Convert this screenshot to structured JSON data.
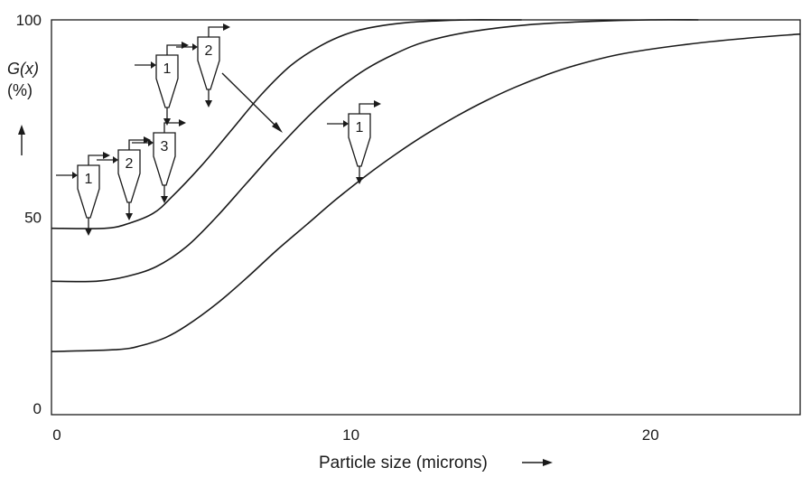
{
  "chart_data": {
    "type": "line",
    "xlabel": "Particle size (microns)",
    "ylabel_main": "G(x)",
    "ylabel_unit": "(%)",
    "xlim": [
      0,
      25
    ],
    "ylim": [
      0,
      100
    ],
    "x_ticks": [
      {
        "value": 0,
        "label": "0"
      },
      {
        "value": 10,
        "label": "10"
      },
      {
        "value": 20,
        "label": "20"
      }
    ],
    "y_ticks": [
      {
        "value": 0,
        "label": "0"
      },
      {
        "value": 50,
        "label": "50"
      },
      {
        "value": 100,
        "label": "100"
      }
    ],
    "grid": false,
    "series": [
      {
        "x": [
          0,
          1.8,
          2.6,
          3.4,
          4.0,
          5.0,
          6.0,
          7.0,
          8.0,
          9.0,
          10.0,
          11.0,
          12.0,
          13.0,
          14.0,
          15.0,
          15.7
        ],
        "values": [
          47.2,
          47.2,
          48.5,
          51.0,
          55.0,
          63.0,
          72.0,
          81.0,
          88.5,
          93.5,
          96.8,
          98.5,
          99.4,
          99.8,
          100.0,
          100.0,
          100.0
        ]
      },
      {
        "x": [
          0,
          1.5,
          2.5,
          3.5,
          4.5,
          5.5,
          6.5,
          7.5,
          8.5,
          9.5,
          10.5,
          11.5,
          12.5,
          14.0,
          16.0,
          18.0,
          20.0,
          21.6
        ],
        "values": [
          33.8,
          33.8,
          35.0,
          37.5,
          42.5,
          50.0,
          58.5,
          67.0,
          75.0,
          82.0,
          87.5,
          91.5,
          94.5,
          97.0,
          98.8,
          99.6,
          100.0,
          100.0
        ]
      },
      {
        "x": [
          0,
          2.2,
          3.0,
          3.8,
          4.5,
          5.5,
          6.5,
          7.5,
          8.5,
          9.5,
          10.5,
          11.5,
          12.5,
          13.5,
          14.5,
          15.5,
          16.5,
          17.5,
          19.0,
          21.0,
          23.0,
          25.0
        ],
        "values": [
          16.0,
          16.5,
          17.5,
          19.5,
          22.5,
          28.0,
          34.5,
          41.5,
          48.0,
          54.5,
          60.5,
          66.0,
          71.0,
          75.5,
          79.5,
          83.0,
          86.0,
          88.5,
          91.3,
          93.6,
          95.2,
          96.4
        ]
      }
    ],
    "annotations": [
      {
        "type": "cyclone",
        "label": "1"
      },
      {
        "type": "cyclone",
        "label": "2"
      },
      {
        "type": "cyclone",
        "label": "3"
      },
      {
        "type": "cyclone",
        "label": "1"
      },
      {
        "type": "cyclone",
        "label": "2"
      },
      {
        "type": "cyclone",
        "label": "1"
      }
    ]
  }
}
